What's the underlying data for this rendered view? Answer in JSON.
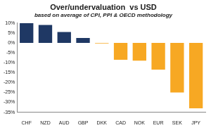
{
  "chart_data": {
    "type": "bar",
    "title": "Over/undervaluation  vs USD",
    "subtitle": "based on average of CPI, PPI & OECD methodology",
    "categories": [
      "CHF",
      "NZD",
      "AUD",
      "GBP",
      "DKK",
      "CAD",
      "NOK",
      "EUR",
      "SEK",
      "JPY"
    ],
    "values": [
      10,
      9,
      5.5,
      2.5,
      -0.3,
      -8.5,
      -9,
      -13.5,
      -25,
      -33
    ],
    "colors": [
      "#1f3864",
      "#1f3864",
      "#1f3864",
      "#1f3864",
      "#f7a823",
      "#f7a823",
      "#f7a823",
      "#f7a823",
      "#f7a823",
      "#f7a823"
    ],
    "ylim": [
      -35,
      10
    ],
    "yticks": [
      {
        "value": -35,
        "label": "-35%"
      },
      {
        "value": -30,
        "label": "-30%"
      },
      {
        "value": -25,
        "label": "-25%"
      },
      {
        "value": -20,
        "label": "-20%"
      },
      {
        "value": -15,
        "label": "-15%"
      },
      {
        "value": -10,
        "label": "-10%"
      },
      {
        "value": -5,
        "label": "-5%"
      },
      {
        "value": 0,
        "label": "0%"
      },
      {
        "value": 5,
        "label": "5%"
      },
      {
        "value": 10,
        "label": "10%"
      }
    ],
    "grid": false
  }
}
